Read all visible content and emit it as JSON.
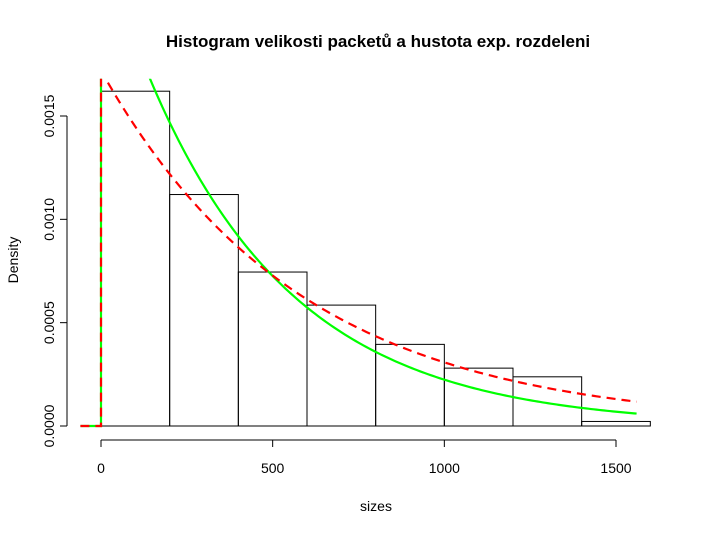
{
  "chart_data": {
    "type": "bar",
    "title": "Histogram velikosti packetů a hustota exp. rozdeleni",
    "xlabel": "sizes",
    "ylabel": "Density",
    "xlim": [
      -80,
      1620
    ],
    "ylim": [
      0,
      0.00168
    ],
    "x_ticks": [
      0,
      500,
      1000,
      1500
    ],
    "x_tick_labels": [
      "0",
      "500",
      "1000",
      "1500"
    ],
    "y_ticks": [
      0,
      0.0005,
      0.001,
      0.0015
    ],
    "y_tick_labels": [
      "0.0000",
      "0.0005",
      "0.0010",
      "0.0015"
    ],
    "histogram": {
      "bins": [
        {
          "start": 0,
          "end": 200,
          "density": 0.00162
        },
        {
          "start": 200,
          "end": 400,
          "density": 0.00112
        },
        {
          "start": 400,
          "end": 600,
          "density": 0.000745
        },
        {
          "start": 600,
          "end": 800,
          "density": 0.000585
        },
        {
          "start": 800,
          "end": 1000,
          "density": 0.000395
        },
        {
          "start": 1000,
          "end": 1200,
          "density": 0.00028
        },
        {
          "start": 1200,
          "end": 1400,
          "density": 0.000238
        },
        {
          "start": 1400,
          "end": 1600,
          "density": 2.2e-05
        }
      ]
    },
    "series": [
      {
        "style": "solid",
        "color": "#00ff00",
        "rate": 0.00235,
        "x_start": 0,
        "x_end": 1560
      },
      {
        "style": "dashed",
        "color": "#ff0000",
        "rate": 0.00172,
        "x_start": 0,
        "x_end": 1560
      }
    ],
    "grid": false,
    "legend": "none"
  }
}
